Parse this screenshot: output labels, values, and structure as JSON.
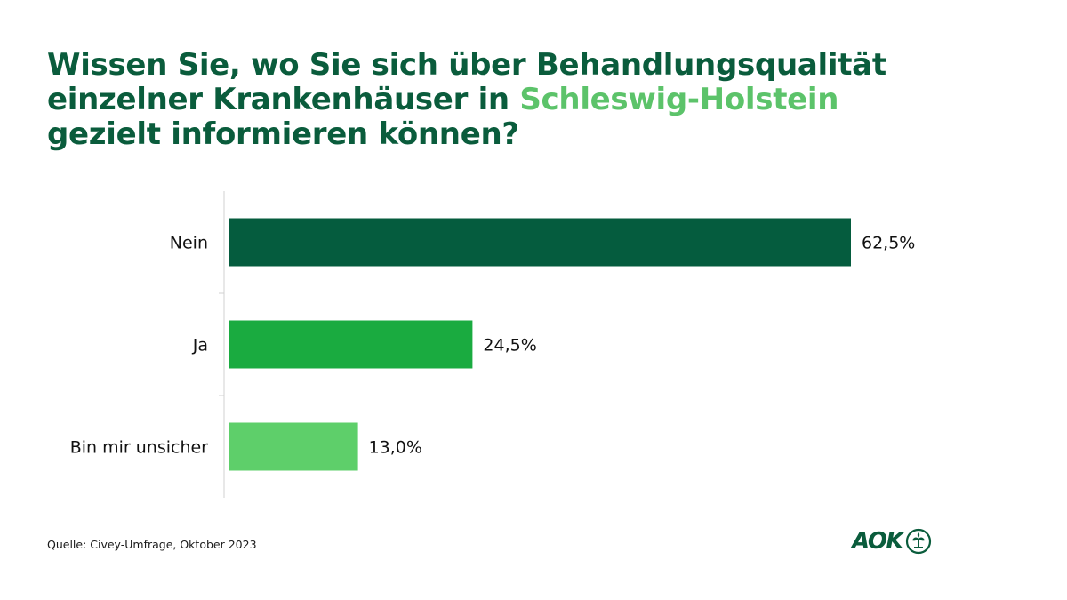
{
  "title": {
    "part1": "Wissen Sie, wo Sie sich über Behandlungsqualität einzelner Krankenhäuser in ",
    "highlight": "Schleswig-Holstein",
    "part2": " gezielt informieren können?"
  },
  "chart_data": {
    "type": "bar",
    "orientation": "horizontal",
    "categories": [
      "Nein",
      "Ja",
      "Bin mir unsicher"
    ],
    "values": [
      62.5,
      24.5,
      13.0
    ],
    "value_labels": [
      "62,5%",
      "24,5%",
      "13,0%"
    ],
    "colors": [
      "#055c3e",
      "#1aab40",
      "#5ecf6a"
    ],
    "xlim": [
      0,
      100
    ],
    "grid": false
  },
  "source": "Quelle: Civey-Umfrage, Oktober 2023",
  "logo": {
    "text": "AOK"
  }
}
